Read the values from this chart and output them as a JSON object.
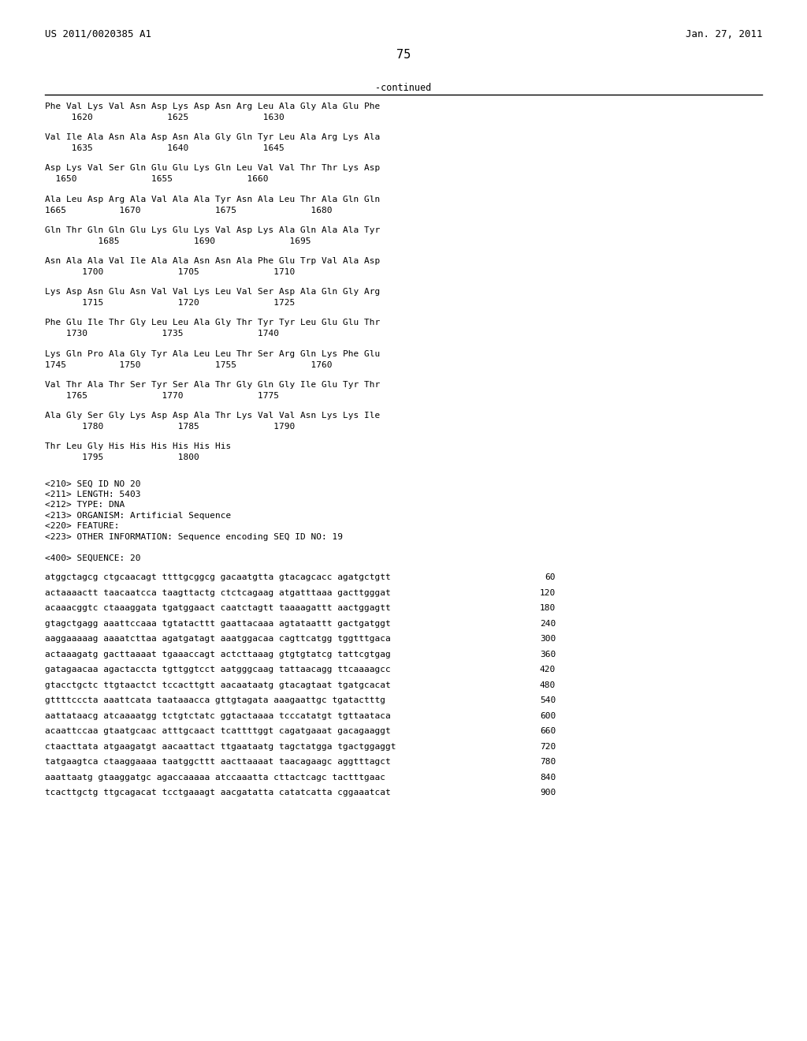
{
  "header_left": "US 2011/0020385 A1",
  "header_right": "Jan. 27, 2011",
  "page_number": "75",
  "continued_label": "-continued",
  "bg_color": "#ffffff",
  "text_color": "#000000",
  "protein_lines": [
    [
      "Phe Val Lys Val Asn Asp Lys Asp Asn Arg Leu Ala Gly Ala Glu Phe",
      "     1620              1625              1630"
    ],
    [
      "Val Ile Ala Asn Ala Asp Asn Ala Gly Gln Tyr Leu Ala Arg Lys Ala",
      "     1635              1640              1645"
    ],
    [
      "Asp Lys Val Ser Gln Glu Glu Lys Gln Leu Val Val Thr Thr Lys Asp",
      "  1650              1655              1660"
    ],
    [
      "Ala Leu Asp Arg Ala Val Ala Ala Tyr Asn Ala Leu Thr Ala Gln Gln",
      "1665          1670              1675              1680"
    ],
    [
      "Gln Thr Gln Gln Glu Lys Glu Lys Val Asp Lys Ala Gln Ala Ala Tyr",
      "          1685              1690              1695"
    ],
    [
      "Asn Ala Ala Val Ile Ala Ala Asn Asn Ala Phe Glu Trp Val Ala Asp",
      "       1700              1705              1710"
    ],
    [
      "Lys Asp Asn Glu Asn Val Val Lys Leu Val Ser Asp Ala Gln Gly Arg",
      "       1715              1720              1725"
    ],
    [
      "Phe Glu Ile Thr Gly Leu Leu Ala Gly Thr Tyr Tyr Leu Glu Glu Thr",
      "    1730              1735              1740"
    ],
    [
      "Lys Gln Pro Ala Gly Tyr Ala Leu Leu Thr Ser Arg Gln Lys Phe Glu",
      "1745          1750              1755              1760"
    ],
    [
      "Val Thr Ala Thr Ser Tyr Ser Ala Thr Gly Gln Gly Ile Glu Tyr Thr",
      "    1765              1770              1775"
    ],
    [
      "Ala Gly Ser Gly Lys Asp Asp Ala Thr Lys Val Val Asn Lys Lys Ile",
      "       1780              1785              1790"
    ],
    [
      "Thr Leu Gly His His His His His His",
      "       1795              1800"
    ]
  ],
  "seq_info": [
    "<210> SEQ ID NO 20",
    "<211> LENGTH: 5403",
    "<212> TYPE: DNA",
    "<213> ORGANISM: Artificial Sequence",
    "<220> FEATURE:",
    "<223> OTHER INFORMATION: Sequence encoding SEQ ID NO: 19"
  ],
  "seq_label": "<400> SEQUENCE: 20",
  "dna_lines": [
    [
      "atggctagcg ctgcaacagt ttttgcggcg gacaatgtta gtacagcacc agatgctgtt",
      "60"
    ],
    [
      "actaaaactt taacaatcca taagttactg ctctcagaag atgatttaaa gacttgggat",
      "120"
    ],
    [
      "acaaacggtc ctaaaggata tgatggaact caatctagtt taaaagattt aactggagtt",
      "180"
    ],
    [
      "gtagctgagg aaattccaaa tgtatacttt gaattacaaa agtataattt gactgatggt",
      "240"
    ],
    [
      "aaggaaaaag aaaatcttaa agatgatagt aaatggacaa cagttcatgg tggtttgaca",
      "300"
    ],
    [
      "actaaagatg gacttaaaat tgaaaccagt actcttaaag gtgtgtatcg tattcgtgag",
      "360"
    ],
    [
      "gatagaacaa agactaccta tgttggtcct aatgggcaag tattaacagg ttcaaaagcc",
      "420"
    ],
    [
      "gtacctgctc ttgtaactct tccacttgtt aacaataatg gtacagtaat tgatgcacat",
      "480"
    ],
    [
      "gttttcccta aaattcata taataaacca gttgtagata aaagaattgc tgatactttg",
      "540"
    ],
    [
      "aattataacg atcaaaatgg tctgtctatc ggtactaaaa tcccatatgt tgttaataca",
      "600"
    ],
    [
      "acaattccaa gtaatgcaac atttgcaact tcattttggt cagatgaaat gacagaaggt",
      "660"
    ],
    [
      "ctaacttata atgaagatgt aacaattact ttgaataatg tagctatgga tgactggaggt",
      "720"
    ],
    [
      "tatgaagtca ctaaggaaaa taatggcttt aacttaaaat taacagaagc aggtttagct",
      "780"
    ],
    [
      "aaattaatg gtaaggatgc agaccaaaaa atccaaatta cttactcagc tactttgaac",
      "840"
    ],
    [
      "tcacttgctg ttgcagacat tcctgaaagt aacgatatta catatcatta cggaaatcat",
      "900"
    ]
  ]
}
